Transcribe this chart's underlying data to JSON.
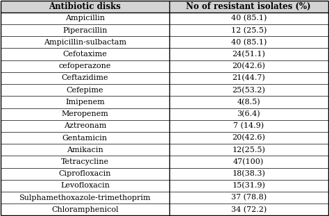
{
  "col1_header": "Antibiotic disks",
  "col2_header": "No of resistant isolates (%)",
  "rows": [
    [
      "Ampicillin",
      "40 (85.1)"
    ],
    [
      "Piperacillin",
      "12 (25.5)"
    ],
    [
      "Ampicillin-sulbactam",
      "40 (85.1)"
    ],
    [
      "Cefotaxime",
      "24(51.1)"
    ],
    [
      "cefoperazone",
      "20(42.6)"
    ],
    [
      "Ceftazidime",
      "21(44.7)"
    ],
    [
      "Cefepime",
      "25(53.2)"
    ],
    [
      "Imipenem",
      "4(8.5)"
    ],
    [
      "Meropenem",
      "3(6.4)"
    ],
    [
      "Aztreonam",
      "7 (14.9)"
    ],
    [
      "Gentamicin",
      "20(42.6)"
    ],
    [
      "Amikacin",
      "12(25.5)"
    ],
    [
      "Tetracycline",
      "47(100)"
    ],
    [
      "Ciprofloxacin",
      "18(38.3)"
    ],
    [
      "Levofloxacin",
      "15(31.9)"
    ],
    [
      "Sulphamethoxazole-trimethoprim",
      "37 (78.8)"
    ],
    [
      "Chloramphenicol",
      "34 (72.2)"
    ]
  ],
  "bg_color": "#ffffff",
  "header_bg": "#d3d3d3",
  "line_color": "#000000",
  "font_size": 8.0,
  "header_font_size": 8.5,
  "col_mid": 0.515,
  "fig_width": 4.74,
  "fig_height": 3.11,
  "dpi": 100
}
